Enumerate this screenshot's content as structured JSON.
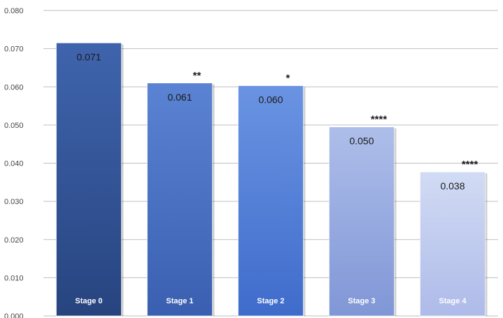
{
  "chart_data": {
    "type": "bar",
    "title": "",
    "xlabel": "",
    "ylabel": "",
    "categories": [
      "Stage 0",
      "Stage 1",
      "Stage 2",
      "Stage 3",
      "Stage 4"
    ],
    "values": [
      0.0715,
      0.061,
      0.0603,
      0.0495,
      0.0377
    ],
    "data_labels": [
      "0.071",
      "0.061",
      "0.060",
      "0.050",
      "0.038"
    ],
    "annotations": [
      "",
      "**",
      "*",
      "****",
      "****"
    ],
    "ylim": [
      0,
      0.08
    ],
    "yticks": [
      0,
      0.01,
      0.02,
      0.03,
      0.04,
      0.05,
      0.06,
      0.07,
      0.08
    ],
    "ytick_labels": [
      "0.000",
      "0.010",
      "0.020",
      "0.030",
      "0.040",
      "0.050",
      "0.060",
      "0.070",
      "0.080"
    ],
    "grid": true,
    "legend": "none",
    "colors": [
      [
        "#3f64ad",
        "#27447f"
      ],
      [
        "#5b83d3",
        "#3a5fb0"
      ],
      [
        "#6a94e2",
        "#3f6ccc"
      ],
      [
        "#aebeea",
        "#8096d6"
      ],
      [
        "#d2dbf4",
        "#aebbe9"
      ]
    ]
  }
}
